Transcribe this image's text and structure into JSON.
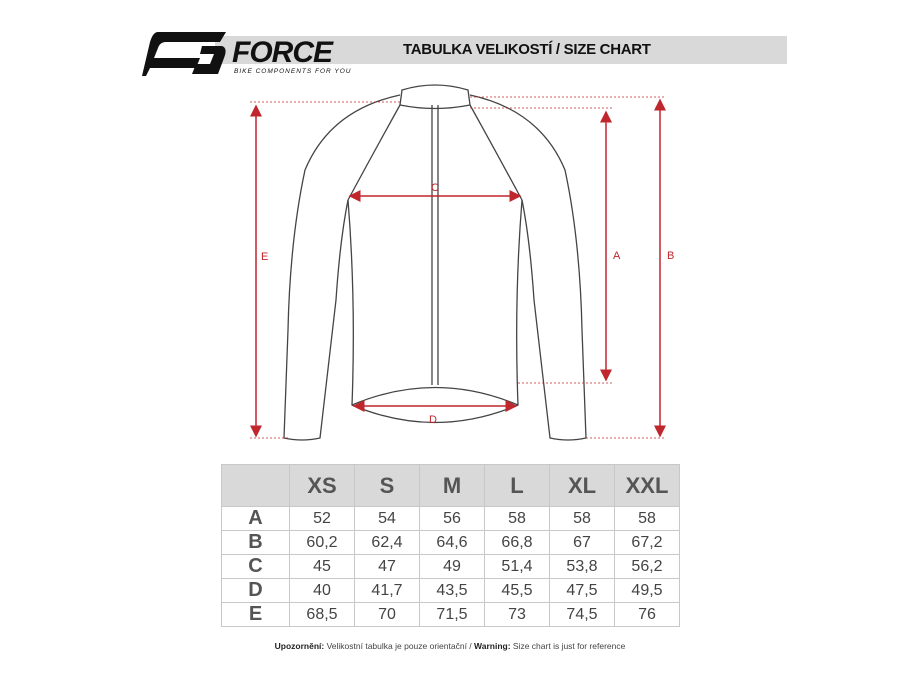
{
  "header": {
    "logo_text": "FORCE",
    "logo_tagline": "BIKE COMPONENTS FOR YOU",
    "title": "TABULKA VELIKOSTÍ / SIZE CHART"
  },
  "diagram": {
    "labels": {
      "a": "A",
      "b": "B",
      "c": "C",
      "d": "D",
      "e": "E"
    },
    "arrow_color": "#c0272d"
  },
  "table": {
    "sizes": [
      "XS",
      "S",
      "M",
      "L",
      "XL",
      "XXL"
    ],
    "rows": [
      {
        "label": "A",
        "values": [
          "52",
          "54",
          "56",
          "58",
          "58",
          "58"
        ]
      },
      {
        "label": "B",
        "values": [
          "60,2",
          "62,4",
          "64,6",
          "66,8",
          "67",
          "67,2"
        ]
      },
      {
        "label": "C",
        "values": [
          "45",
          "47",
          "49",
          "51,4",
          "53,8",
          "56,2"
        ]
      },
      {
        "label": "D",
        "values": [
          "40",
          "41,7",
          "43,5",
          "45,5",
          "47,5",
          "49,5"
        ]
      },
      {
        "label": "E",
        "values": [
          "68,5",
          "70",
          "71,5",
          "73",
          "74,5",
          "76"
        ]
      }
    ]
  },
  "note": {
    "cz_label": "Upozornění:",
    "cz_text": " Velikostní tabulka je pouze orientační / ",
    "en_label": "Warning:",
    "en_text": " Size chart is just for reference"
  }
}
